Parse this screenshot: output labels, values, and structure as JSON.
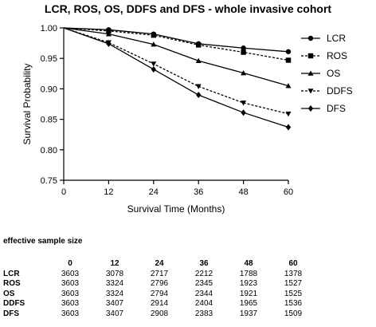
{
  "colors": {
    "ink": "#000000",
    "background": "#ffffff"
  },
  "chart_data": {
    "type": "line",
    "title": "LCR, ROS, OS, DDFS and DFS - whole invasive cohort",
    "xlabel": "Survival Time (Months)",
    "ylabel": "Survival Probability",
    "x": [
      0,
      12,
      24,
      36,
      48,
      60
    ],
    "xlim": [
      0,
      60
    ],
    "ylim": [
      0.75,
      1.0
    ],
    "xticks": [
      "0",
      "12",
      "24",
      "36",
      "48",
      "60"
    ],
    "yticks": [
      "0.75",
      "0.80",
      "0.85",
      "0.90",
      "0.95",
      "1.00"
    ],
    "grid": false,
    "legend_position": "right",
    "series": [
      {
        "name": "LCR",
        "marker": "circle",
        "dash": "solid",
        "values": [
          1.0,
          0.997,
          0.99,
          0.974,
          0.967,
          0.961
        ]
      },
      {
        "name": "ROS",
        "marker": "square",
        "dash": "dashed",
        "values": [
          1.0,
          0.995,
          0.988,
          0.972,
          0.96,
          0.947
        ]
      },
      {
        "name": "OS",
        "marker": "triangle-up",
        "dash": "solid",
        "values": [
          1.0,
          0.99,
          0.973,
          0.946,
          0.926,
          0.905
        ]
      },
      {
        "name": "DDFS",
        "marker": "triangle-down",
        "dash": "dashed",
        "values": [
          1.0,
          0.976,
          0.941,
          0.904,
          0.877,
          0.859
        ]
      },
      {
        "name": "DFS",
        "marker": "diamond",
        "dash": "solid",
        "values": [
          1.0,
          0.974,
          0.932,
          0.89,
          0.861,
          0.837
        ]
      }
    ]
  },
  "risk_table": {
    "caption": "effective sample size",
    "columns": [
      "0",
      "12",
      "24",
      "36",
      "48",
      "60"
    ],
    "rows": [
      {
        "label": "LCR",
        "values": [
          "3603",
          "3078",
          "2717",
          "2212",
          "1788",
          "1378"
        ]
      },
      {
        "label": "ROS",
        "values": [
          "3603",
          "3324",
          "2796",
          "2345",
          "1923",
          "1527"
        ]
      },
      {
        "label": "OS",
        "values": [
          "3603",
          "3324",
          "2794",
          "2344",
          "1921",
          "1525"
        ]
      },
      {
        "label": "DDFS",
        "values": [
          "3603",
          "3407",
          "2914",
          "2404",
          "1965",
          "1536"
        ]
      },
      {
        "label": "DFS",
        "values": [
          "3603",
          "3407",
          "2908",
          "2383",
          "1937",
          "1509"
        ]
      }
    ]
  }
}
